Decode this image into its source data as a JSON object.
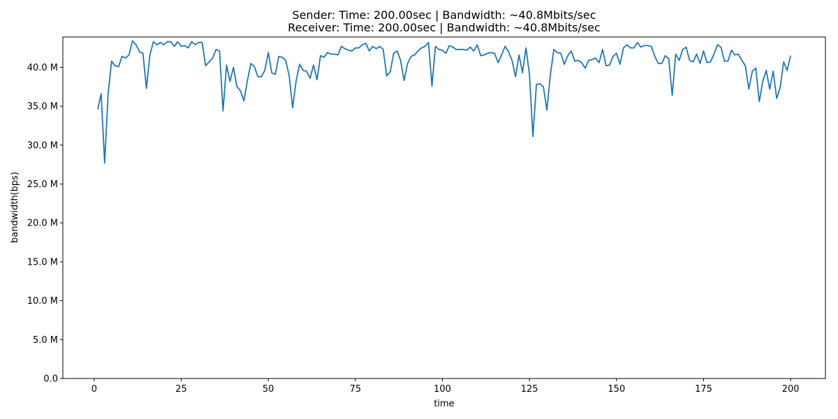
{
  "chart_data": {
    "type": "line",
    "title_line1": "Sender: Time: 200.00sec | Bandwidth: ~40.8Mbits/sec",
    "title_line2": "Receiver: Time: 200.00sec | Bandwidth: ~40.8Mbits/sec",
    "xlabel": "time",
    "ylabel": "bandwidth(bps)",
    "xlim": [
      -9,
      210
    ],
    "ylim": [
      0,
      43.9
    ],
    "x_ticks": [
      0,
      25,
      50,
      75,
      100,
      125,
      150,
      175,
      200
    ],
    "x_tick_labels": [
      "0",
      "25",
      "50",
      "75",
      "100",
      "125",
      "150",
      "175",
      "200"
    ],
    "y_ticks": [
      0,
      5,
      10,
      15,
      20,
      25,
      30,
      35,
      40
    ],
    "y_tick_labels": [
      "0.0",
      "5.0 M",
      "10.0 M",
      "15.0 M",
      "20.0 M",
      "25.0 M",
      "30.0 M",
      "35.0 M",
      "40.0 M"
    ],
    "grid": false,
    "line_color": "#1f77b4",
    "series": [
      {
        "x": [
          1,
          2,
          3,
          4,
          5,
          6,
          7,
          8,
          9,
          10,
          11,
          12,
          13,
          14,
          15,
          16,
          17,
          18,
          19,
          20,
          21,
          22,
          23,
          24,
          25,
          26,
          27,
          28,
          29,
          30,
          31,
          32,
          33,
          34,
          35,
          36,
          37,
          38,
          39,
          40,
          41,
          42,
          43,
          44,
          45,
          46,
          47,
          48,
          49,
          50,
          51,
          52,
          53,
          54,
          55,
          56,
          57,
          58,
          59,
          60,
          61,
          62,
          63,
          64,
          65,
          66,
          67,
          68,
          69,
          70,
          71,
          72,
          73,
          74,
          75,
          76,
          77,
          78,
          79,
          80,
          81,
          82,
          83,
          84,
          85,
          86,
          87,
          88,
          89,
          90,
          91,
          92,
          93,
          94,
          95,
          96,
          97,
          98,
          99,
          100,
          101,
          102,
          103,
          104,
          105,
          106,
          107,
          108,
          109,
          110,
          111,
          112,
          113,
          114,
          115,
          116,
          117,
          118,
          119,
          120,
          121,
          122,
          123,
          124,
          125,
          126,
          127,
          128,
          129,
          130,
          131,
          132,
          133,
          134,
          135,
          136,
          137,
          138,
          139,
          140,
          141,
          142,
          143,
          144,
          145,
          146,
          147,
          148,
          149,
          150,
          151,
          152,
          153,
          154,
          155,
          156,
          157,
          158,
          159,
          160,
          161,
          162,
          163,
          164,
          165,
          166,
          167,
          168,
          169,
          170,
          171,
          172,
          173,
          174,
          175,
          176,
          177,
          178,
          179,
          180,
          181,
          182,
          183,
          184,
          185,
          186,
          187,
          188,
          189,
          190,
          191,
          192,
          193,
          194,
          195,
          196,
          197,
          198,
          199,
          200
        ],
        "values": [
          34.6,
          36.6,
          27.7,
          36.6,
          40.8,
          40.2,
          40.1,
          41.4,
          41.2,
          41.6,
          43.4,
          42.9,
          42.0,
          41.8,
          37.3,
          41.6,
          43.3,
          42.9,
          43.2,
          42.9,
          43.3,
          43.3,
          42.7,
          43.3,
          42.7,
          42.8,
          42.5,
          43.3,
          42.9,
          43.2,
          43.2,
          40.2,
          40.7,
          41.2,
          42.3,
          42.1,
          34.4,
          40.3,
          38.2,
          40.0,
          37.5,
          37.0,
          35.7,
          38.3,
          40.5,
          40.1,
          38.8,
          38.8,
          39.6,
          41.9,
          39.3,
          39.1,
          41.4,
          41.3,
          40.9,
          38.9,
          34.8,
          38.3,
          40.4,
          39.6,
          39.5,
          38.6,
          40.3,
          38.4,
          41.5,
          41.3,
          41.9,
          41.7,
          41.7,
          41.6,
          42.7,
          42.4,
          42.2,
          42.1,
          42.5,
          42.5,
          42.9,
          43.1,
          42.1,
          42.7,
          42.4,
          42.7,
          42.3,
          38.9,
          39.4,
          41.8,
          42.1,
          40.9,
          38.3,
          40.5,
          41.4,
          41.6,
          42.1,
          42.5,
          42.7,
          43.2,
          37.6,
          42.7,
          42.3,
          42.2,
          41.8,
          42.8,
          42.6,
          42.3,
          42.3,
          42.3,
          42.2,
          42.6,
          42.1,
          42.9,
          41.5,
          41.6,
          41.8,
          41.9,
          41.8,
          40.6,
          41.6,
          42.7,
          42.0,
          40.9,
          38.8,
          41.6,
          39.3,
          42.5,
          39.1,
          31.1,
          37.8,
          37.9,
          37.5,
          34.5,
          39.0,
          42.3,
          41.9,
          41.8,
          40.4,
          41.5,
          42.1,
          40.8,
          40.9,
          40.6,
          39.9,
          40.9,
          41.0,
          41.2,
          40.6,
          42.3,
          40.2,
          40.3,
          41.4,
          41.8,
          40.4,
          42.5,
          42.9,
          42.5,
          42.5,
          43.2,
          42.6,
          42.8,
          42.8,
          42.7,
          41.4,
          40.5,
          40.5,
          41.5,
          41.1,
          36.4,
          41.7,
          40.9,
          42.3,
          42.6,
          40.9,
          40.7,
          41.7,
          40.5,
          42.1,
          40.6,
          40.7,
          41.7,
          42.9,
          42.6,
          40.8,
          40.8,
          42.2,
          41.6,
          41.7,
          40.9,
          40.2,
          37.2,
          39.5,
          39.9,
          35.6,
          38.2,
          39.6,
          37.2,
          39.5,
          36.0,
          37.4,
          40.7,
          39.6,
          41.5
        ]
      }
    ]
  }
}
